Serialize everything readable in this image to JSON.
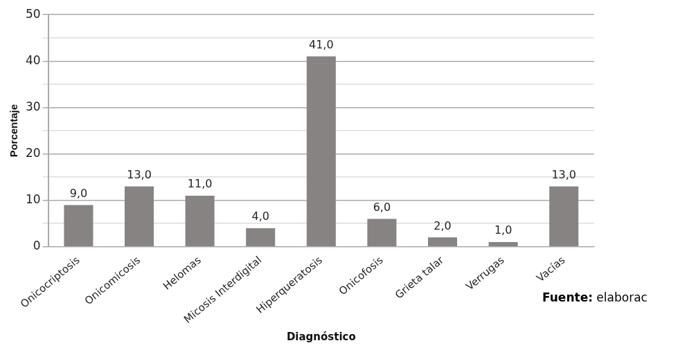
{
  "chart_data": {
    "type": "bar",
    "xlabel": "Diagnóstico",
    "ylabel": "Porcentaje",
    "categories": [
      "Onicocriptosis",
      "Onicomicosis",
      "Helomas",
      "Micosis Interdigital",
      "Hiperqueratosis",
      "Onicofosis",
      "Grieta talar",
      "Verrugas",
      "Vacías"
    ],
    "values": [
      9,
      13,
      11,
      4,
      41,
      6,
      2,
      1,
      13
    ],
    "value_labels": [
      "9,0",
      "13,0",
      "11,0",
      "4,0",
      "41,0",
      "6,0",
      "2,0",
      "1,0",
      "13,0"
    ],
    "color": "#878383",
    "ylim": [
      0,
      50
    ],
    "yticks": [
      0,
      {
        "value": 5,
        "label": null
      },
      10,
      {
        "value": 15,
        "label": null
      },
      20,
      {
        "value": 25,
        "label": null
      },
      30,
      {
        "value": 35,
        "label": null
      },
      40,
      {
        "value": 45,
        "label": null
      },
      50
    ],
    "grid": "y",
    "legend": false,
    "annotations": [
      "Fuente: elaborac"
    ]
  }
}
